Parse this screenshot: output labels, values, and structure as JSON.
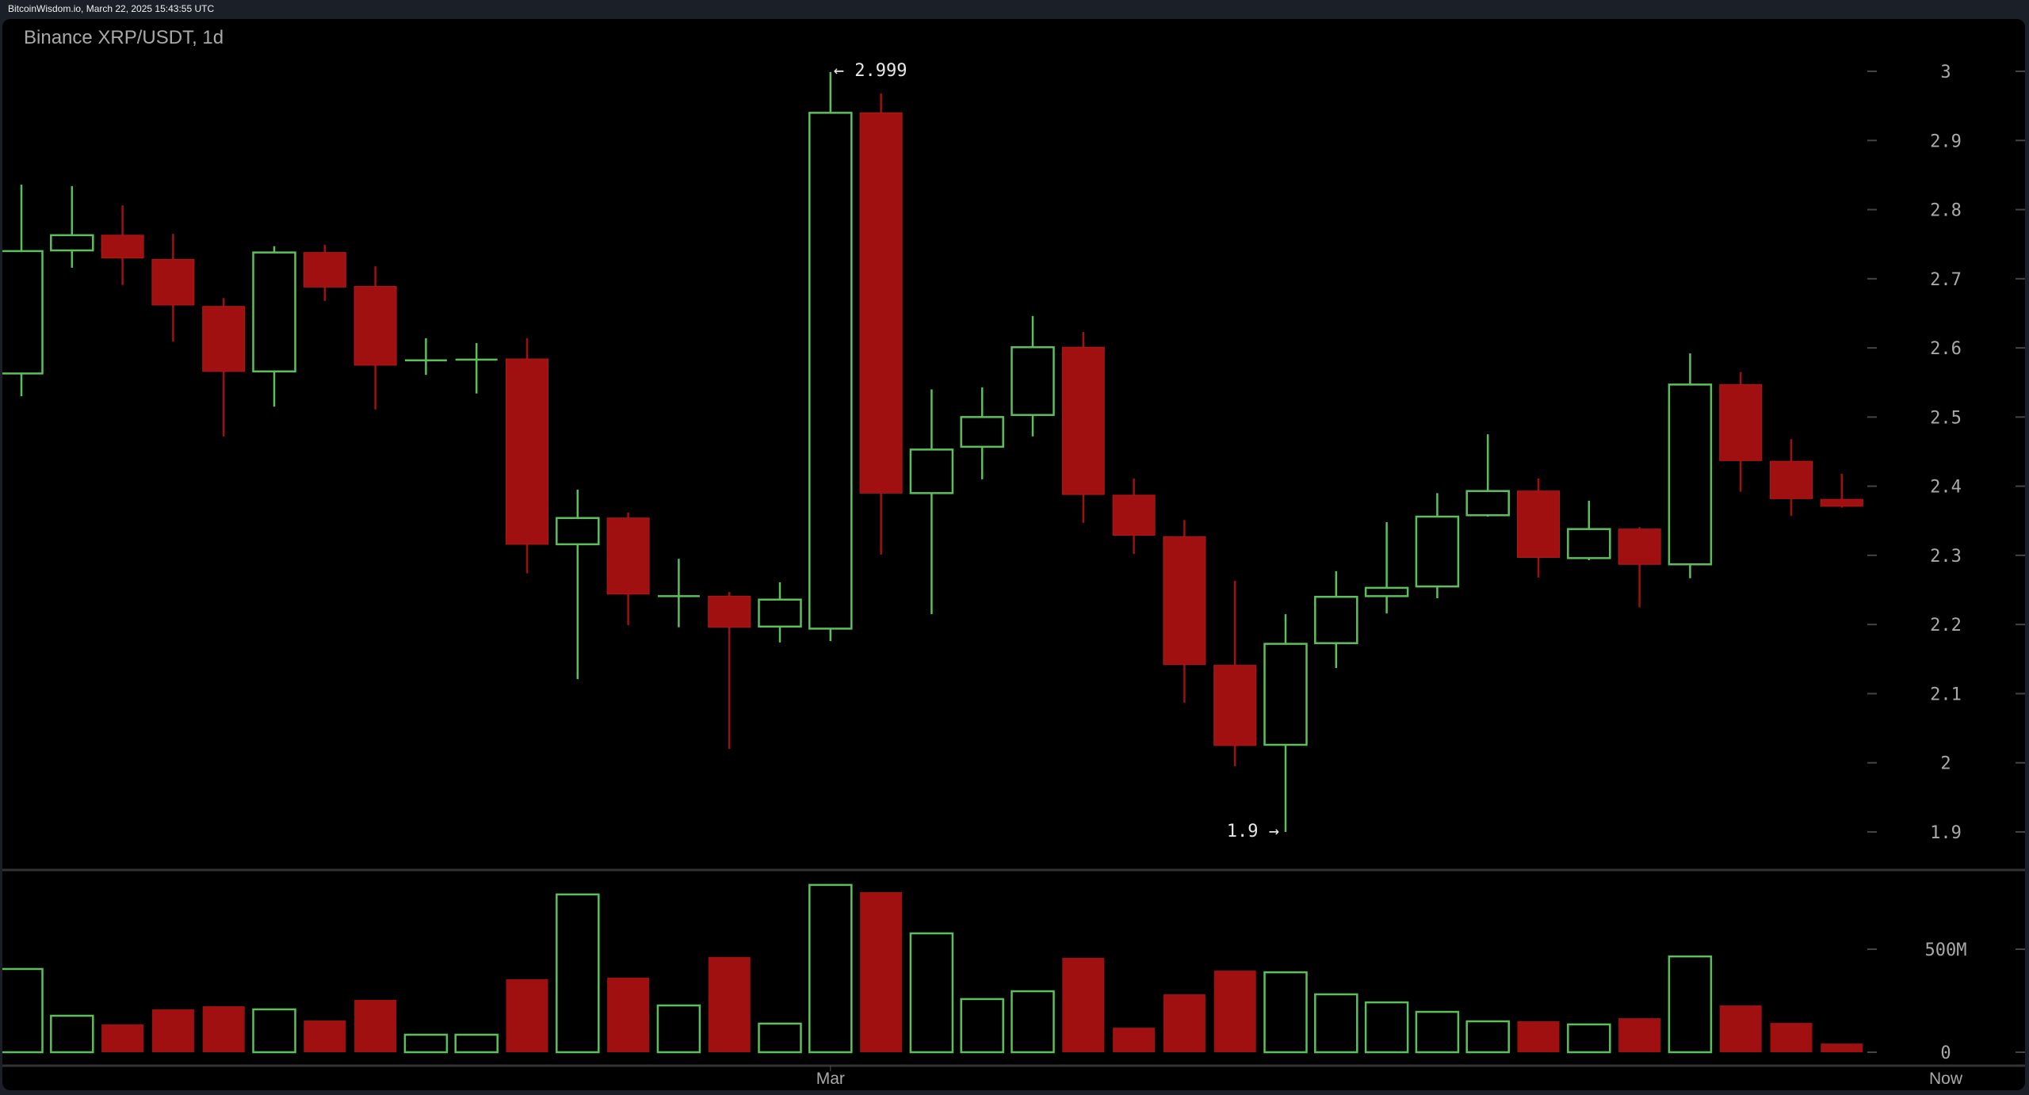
{
  "header": {
    "source_text": "BitcoinWisdom.io, March 22, 2025 15:43:55 UTC"
  },
  "chart": {
    "title": "Binance XRP/USDT, 1d",
    "price_ticks": [
      "3",
      "2.9",
      "2.8",
      "2.7",
      "2.6",
      "2.5",
      "2.4",
      "2.3",
      "2.2",
      "2.1",
      "2",
      "1.9"
    ],
    "volume_ticks": [
      "500M",
      "0"
    ],
    "x_labels": [
      "Mar",
      "Now"
    ],
    "annotations": {
      "high": "← 2.999",
      "low": "1.9 →"
    },
    "colors": {
      "up": "#5cbf5c",
      "down": "#a01010",
      "background": "#000000",
      "grid": "#333333",
      "text": "#a9a9a9"
    }
  },
  "chart_data": {
    "type": "candlestick",
    "title": "Binance XRP/USDT, 1d",
    "xlabel": "",
    "ylabel": "",
    "ylim": [
      1.9,
      3.0
    ],
    "volume_ylim": [
      0,
      800
    ],
    "volume_unit": "M",
    "x_tick_labels": [
      {
        "index": 16,
        "label": "Mar"
      },
      {
        "index": 37,
        "label": "Now"
      }
    ],
    "annotations": [
      {
        "label": "← 2.999",
        "index": 16,
        "value": 2.999
      },
      {
        "label": "1.9 →",
        "index": 25,
        "value": 1.9
      }
    ],
    "candles": [
      {
        "o": 2.563,
        "h": 2.836,
        "l": 2.53,
        "c": 2.74,
        "v": 404
      },
      {
        "o": 2.741,
        "h": 2.834,
        "l": 2.716,
        "c": 2.763,
        "v": 177
      },
      {
        "o": 2.763,
        "h": 2.806,
        "l": 2.691,
        "c": 2.73,
        "v": 135
      },
      {
        "o": 2.728,
        "h": 2.765,
        "l": 2.609,
        "c": 2.662,
        "v": 208
      },
      {
        "o": 2.66,
        "h": 2.672,
        "l": 2.472,
        "c": 2.566,
        "v": 223
      },
      {
        "o": 2.566,
        "h": 2.747,
        "l": 2.515,
        "c": 2.738,
        "v": 208
      },
      {
        "o": 2.738,
        "h": 2.749,
        "l": 2.668,
        "c": 2.688,
        "v": 154
      },
      {
        "o": 2.689,
        "h": 2.718,
        "l": 2.511,
        "c": 2.575,
        "v": 254
      },
      {
        "o": 2.58,
        "h": 2.614,
        "l": 2.561,
        "c": 2.582,
        "v": 85
      },
      {
        "o": 2.581,
        "h": 2.607,
        "l": 2.534,
        "c": 2.583,
        "v": 85
      },
      {
        "o": 2.584,
        "h": 2.614,
        "l": 2.274,
        "c": 2.316,
        "v": 354
      },
      {
        "o": 2.316,
        "h": 2.395,
        "l": 2.121,
        "c": 2.354,
        "v": 766
      },
      {
        "o": 2.354,
        "h": 2.362,
        "l": 2.199,
        "c": 2.244,
        "v": 362
      },
      {
        "o": 2.24,
        "h": 2.295,
        "l": 2.196,
        "c": 2.241,
        "v": 227
      },
      {
        "o": 2.241,
        "h": 2.247,
        "l": 2.02,
        "c": 2.196,
        "v": 462
      },
      {
        "o": 2.197,
        "h": 2.261,
        "l": 2.174,
        "c": 2.236,
        "v": 139
      },
      {
        "o": 2.194,
        "h": 2.999,
        "l": 2.176,
        "c": 2.94,
        "v": 812
      },
      {
        "o": 2.94,
        "h": 2.968,
        "l": 2.301,
        "c": 2.39,
        "v": 777
      },
      {
        "o": 2.39,
        "h": 2.54,
        "l": 2.215,
        "c": 2.453,
        "v": 577
      },
      {
        "o": 2.457,
        "h": 2.543,
        "l": 2.41,
        "c": 2.5,
        "v": 258
      },
      {
        "o": 2.503,
        "h": 2.646,
        "l": 2.472,
        "c": 2.601,
        "v": 296
      },
      {
        "o": 2.601,
        "h": 2.623,
        "l": 2.347,
        "c": 2.388,
        "v": 458
      },
      {
        "o": 2.387,
        "h": 2.411,
        "l": 2.302,
        "c": 2.329,
        "v": 119
      },
      {
        "o": 2.327,
        "h": 2.351,
        "l": 2.087,
        "c": 2.142,
        "v": 281
      },
      {
        "o": 2.141,
        "h": 2.263,
        "l": 1.995,
        "c": 2.025,
        "v": 396
      },
      {
        "o": 2.026,
        "h": 2.215,
        "l": 1.9,
        "c": 2.172,
        "v": 388
      },
      {
        "o": 2.173,
        "h": 2.277,
        "l": 2.137,
        "c": 2.24,
        "v": 281
      },
      {
        "o": 2.241,
        "h": 2.348,
        "l": 2.216,
        "c": 2.253,
        "v": 242
      },
      {
        "o": 2.255,
        "h": 2.39,
        "l": 2.238,
        "c": 2.356,
        "v": 196
      },
      {
        "o": 2.358,
        "h": 2.475,
        "l": 2.356,
        "c": 2.393,
        "v": 150
      },
      {
        "o": 2.393,
        "h": 2.411,
        "l": 2.268,
        "c": 2.297,
        "v": 150
      },
      {
        "o": 2.296,
        "h": 2.379,
        "l": 2.293,
        "c": 2.338,
        "v": 135
      },
      {
        "o": 2.338,
        "h": 2.341,
        "l": 2.225,
        "c": 2.287,
        "v": 165
      },
      {
        "o": 2.287,
        "h": 2.592,
        "l": 2.267,
        "c": 2.547,
        "v": 465
      },
      {
        "o": 2.547,
        "h": 2.565,
        "l": 2.392,
        "c": 2.437,
        "v": 227
      },
      {
        "o": 2.436,
        "h": 2.468,
        "l": 2.357,
        "c": 2.382,
        "v": 142
      },
      {
        "o": 2.381,
        "h": 2.418,
        "l": 2.369,
        "c": 2.371,
        "v": 42
      }
    ]
  }
}
